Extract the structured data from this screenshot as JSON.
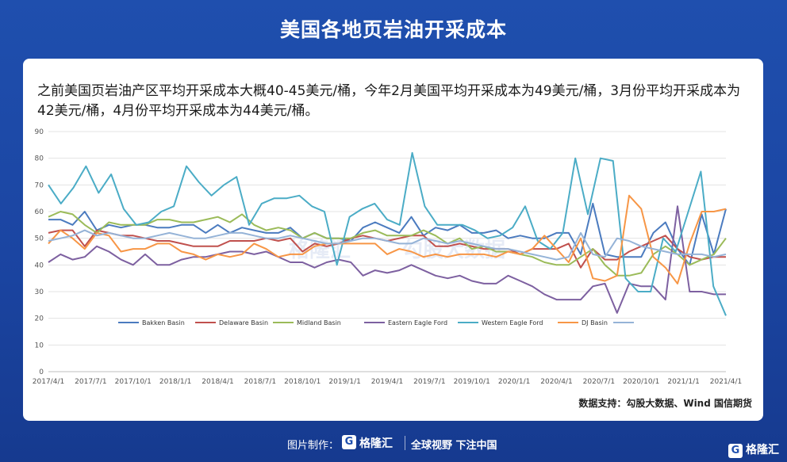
{
  "header": {
    "title": "美国各地页岩油开采成本"
  },
  "description": "之前美国页岩油产区平均开采成本大概40-45美元/桶，今年2月美国平均开采成本为49美元/桶，3月份平均开采成本为42美元/桶，4月份平均开采成本为44美元/桶。",
  "source": "数据支持：勾股大数据、Wind 国信期货",
  "footer": {
    "label": "图片制作：",
    "logo_text": "格隆汇",
    "slogan": "全球视野 下注中国",
    "corner_logo": "格隆汇"
  },
  "watermarks": [
    "格隆汇",
    "勾股大数据"
  ],
  "chart_data": {
    "type": "line",
    "title": "",
    "xlabel": "",
    "ylabel": "",
    "ylim": [
      0,
      90
    ],
    "yticks": [
      0,
      10,
      20,
      30,
      40,
      50,
      60,
      70,
      80,
      90
    ],
    "grid": true,
    "legend_position": "bottom-inside",
    "x_ticks": [
      "2017/4/1",
      "2017/7/1",
      "2017/10/1",
      "2018/1/1",
      "2018/4/1",
      "2018/7/1",
      "2018/10/1",
      "2019/1/1",
      "2019/4/1",
      "2019/7/1",
      "2019/10/1",
      "2020/1/1",
      "2020/4/1",
      "2020/7/1",
      "2020/10/1",
      "2021/1/1",
      "2021/4/1"
    ],
    "series": [
      {
        "name": "Bakken Basin",
        "color": "#4b7bbf",
        "values": [
          57,
          57,
          55,
          60,
          53,
          55,
          54,
          55,
          55,
          54,
          54,
          55,
          55,
          52,
          55,
          52,
          54,
          53,
          52,
          52,
          54,
          50,
          52,
          50,
          50,
          49,
          54,
          56,
          54,
          52,
          58,
          51,
          54,
          53,
          55,
          52,
          52,
          53,
          50,
          51,
          50,
          50,
          52,
          52,
          44,
          63,
          44,
          43,
          43,
          43,
          52,
          56,
          46,
          40,
          59,
          44,
          61
        ]
      },
      {
        "name": "Delaware Basin",
        "color": "#c0504d",
        "values": [
          52,
          53,
          53,
          47,
          53,
          52,
          51,
          51,
          50,
          49,
          49,
          48,
          47,
          47,
          47,
          49,
          49,
          49,
          50,
          49,
          50,
          45,
          48,
          47,
          48,
          50,
          51,
          50,
          49,
          50,
          51,
          51,
          47,
          47,
          48,
          47,
          46,
          46,
          46,
          44,
          46,
          46,
          46,
          48,
          39,
          46,
          42,
          42,
          45,
          47,
          49,
          51,
          46,
          43,
          42,
          43,
          43
        ]
      },
      {
        "name": "Midland Basin",
        "color": "#9bbb59",
        "values": [
          58,
          60,
          59,
          55,
          52,
          56,
          55,
          55,
          55,
          57,
          57,
          56,
          56,
          57,
          58,
          56,
          59,
          55,
          53,
          54,
          53,
          50,
          52,
          50,
          50,
          50,
          52,
          53,
          51,
          51,
          51,
          53,
          51,
          48,
          50,
          46,
          47,
          45,
          45,
          44,
          43,
          41,
          40,
          40,
          43,
          46,
          40,
          36,
          36,
          37,
          44,
          47,
          44,
          40,
          42,
          44,
          50
        ]
      },
      {
        "name": "Eastern Eagle Ford",
        "color": "#7d60a0",
        "values": [
          41,
          44,
          42,
          43,
          47,
          45,
          42,
          40,
          44,
          40,
          40,
          42,
          43,
          43,
          44,
          45,
          45,
          44,
          45,
          43,
          41,
          41,
          39,
          41,
          42,
          41,
          36,
          38,
          37,
          38,
          40,
          38,
          36,
          35,
          36,
          34,
          33,
          33,
          36,
          34,
          32,
          29,
          27,
          27,
          27,
          32,
          33,
          22,
          33,
          32,
          32,
          27,
          62,
          30,
          30,
          29,
          29
        ]
      },
      {
        "name": "Western Eagle Ford",
        "color": "#4bacc6",
        "values": [
          70,
          63,
          69,
          77,
          67,
          74,
          61,
          55,
          56,
          60,
          62,
          77,
          71,
          66,
          70,
          73,
          55,
          63,
          65,
          65,
          66,
          62,
          60,
          40,
          58,
          61,
          63,
          57,
          55,
          82,
          62,
          55,
          55,
          55,
          53,
          50,
          51,
          54,
          62,
          49,
          46,
          52,
          80,
          59,
          80,
          79,
          35,
          30,
          30,
          50,
          45,
          60,
          75,
          32,
          21
        ]
      },
      {
        "name": "DJ Basin",
        "color": "#f79646",
        "values": [
          48,
          53,
          50,
          46,
          52,
          51,
          45,
          46,
          46,
          48,
          48,
          45,
          44,
          42,
          44,
          43,
          44,
          48,
          46,
          43,
          44,
          44,
          47,
          48,
          48,
          48,
          48,
          48,
          44,
          46,
          45,
          43,
          44,
          43,
          44,
          44,
          44,
          43,
          45,
          44,
          46,
          51,
          46,
          41,
          50,
          35,
          34,
          36,
          66,
          61,
          43,
          39,
          33,
          48,
          60,
          60,
          61
        ]
      },
      {
        "name": "",
        "color": "#95b3d7",
        "values": [
          49,
          50,
          51,
          53,
          51,
          52,
          51,
          50,
          50,
          51,
          52,
          51,
          50,
          50,
          51,
          52,
          52,
          51,
          50,
          50,
          51,
          50,
          49,
          48,
          48,
          49,
          50,
          50,
          49,
          48,
          48,
          50,
          49,
          48,
          49,
          48,
          47,
          46,
          46,
          45,
          44,
          43,
          42,
          43,
          52,
          44,
          43,
          50,
          49,
          47,
          46,
          45,
          44,
          44,
          44,
          43,
          44
        ]
      }
    ]
  }
}
